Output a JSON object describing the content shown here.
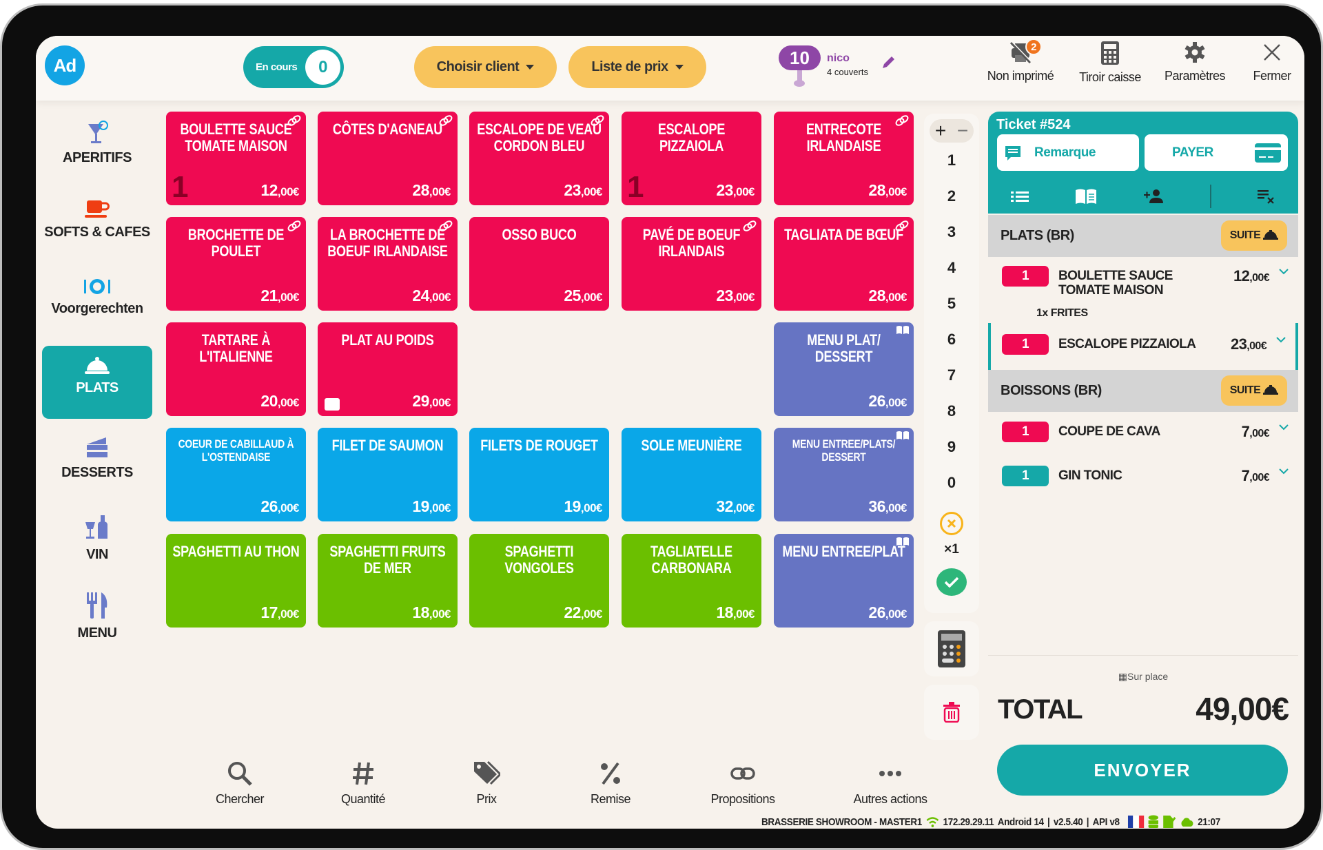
{
  "header": {
    "avatar": "Ad",
    "en_cours_label": "En cours",
    "en_cours_count": "0",
    "choose_client": "Choisir client",
    "price_list": "Liste de prix",
    "table_number": "10",
    "waiter": "nico",
    "covers": "4 couverts",
    "actions": [
      {
        "label": "Non imprimé",
        "icon": "printer-off-icon",
        "badge": "2"
      },
      {
        "label": "Tiroir caisse",
        "icon": "calculator-icon"
      },
      {
        "label": "Paramètres",
        "icon": "gear-icon"
      },
      {
        "label": "Fermer",
        "icon": "close-icon"
      }
    ]
  },
  "categories": [
    {
      "label": "APERITIFS",
      "icon": "cocktail-icon",
      "active": false
    },
    {
      "label": "SOFTS & CAFES",
      "icon": "coffee-cup-icon",
      "active": false
    },
    {
      "label": "Voorgerechten",
      "icon": "plate-icon",
      "active": false
    },
    {
      "label": "PLATS",
      "icon": "cloche-icon",
      "active": true
    },
    {
      "label": "DESSERTS",
      "icon": "cake-icon",
      "active": false
    },
    {
      "label": "VIN",
      "icon": "wine-icon",
      "active": false
    },
    {
      "label": "MENU",
      "icon": "cutlery-icon",
      "active": false
    }
  ],
  "colors": {
    "red": "#ef0a52",
    "blue": "#0aa7e8",
    "green": "#6bbf00",
    "purple": "#6674c3",
    "teal": "#15a8a8",
    "yellow": "#f8c45c"
  },
  "products": [
    {
      "name": "BOULETTE SAUCE TOMATE MAISON",
      "price": "12",
      "cents": ",00€",
      "color": "red",
      "icon": "link-icon",
      "qty": "1"
    },
    {
      "name": "CÔTES D'AGNEAU",
      "price": "28",
      "cents": ",00€",
      "color": "red",
      "icon": "link-icon"
    },
    {
      "name": "ESCALOPE DE VEAU CORDON BLEU",
      "price": "23",
      "cents": ",00€",
      "color": "red",
      "icon": "link-icon"
    },
    {
      "name": "ESCALOPE PIZZAIOLA",
      "price": "23",
      "cents": ",00€",
      "color": "red",
      "qty": "1"
    },
    {
      "name": "ENTRECOTE IRLANDAISE",
      "price": "28",
      "cents": ",00€",
      "color": "red",
      "icon": "link-icon"
    },
    {
      "name": "BROCHETTE DE POULET",
      "price": "21",
      "cents": ",00€",
      "color": "red",
      "icon": "link-icon"
    },
    {
      "name": "LA BROCHETTE DE BOEUF IRLANDAISE",
      "price": "24",
      "cents": ",00€",
      "color": "red",
      "icon": "link-icon"
    },
    {
      "name": "OSSO BUCO",
      "price": "25",
      "cents": ",00€",
      "color": "red"
    },
    {
      "name": "PAVÉ DE BOEUF IRLANDAIS",
      "price": "23",
      "cents": ",00€",
      "color": "red",
      "icon": "link-icon"
    },
    {
      "name": "TAGLIATA DE BŒUF",
      "price": "28",
      "cents": ",00€",
      "color": "red",
      "icon": "link-icon"
    },
    {
      "name": "TARTARE À L'ITALIENNE",
      "price": "20",
      "cents": ",00€",
      "color": "red"
    },
    {
      "name": "PLAT AU POIDS",
      "price": "29",
      "cents": ",00€",
      "color": "red",
      "weighed": true
    },
    null,
    null,
    {
      "name": "MENU PLAT/ DESSERT",
      "price": "26",
      "cents": ",00€",
      "color": "purple",
      "icon": "book-icon"
    },
    {
      "name": "COEUR DE CABILLAUD À L'OSTENDAISE",
      "price": "26",
      "cents": ",00€",
      "color": "blue",
      "small": true
    },
    {
      "name": "FILET DE SAUMON",
      "price": "19",
      "cents": ",00€",
      "color": "blue"
    },
    {
      "name": "FILETS DE ROUGET",
      "price": "19",
      "cents": ",00€",
      "color": "blue"
    },
    {
      "name": "SOLE MEUNIÈRE",
      "price": "32",
      "cents": ",00€",
      "color": "blue"
    },
    {
      "name": "MENU ENTREE/PLATS/ DESSERT",
      "price": "36",
      "cents": ",00€",
      "color": "purple",
      "icon": "book-icon",
      "small": true
    },
    {
      "name": "SPAGHETTI AU THON",
      "price": "17",
      "cents": ",00€",
      "color": "green"
    },
    {
      "name": "SPAGHETTI FRUITS DE MER",
      "price": "18",
      "cents": ",00€",
      "color": "green"
    },
    {
      "name": "SPAGHETTI VONGOLES",
      "price": "22",
      "cents": ",00€",
      "color": "green"
    },
    {
      "name": "TAGLIATELLE CARBONARA",
      "price": "18",
      "cents": ",00€",
      "color": "green"
    },
    {
      "name": "MENU ENTREE/PLAT",
      "price": "26",
      "cents": ",00€",
      "color": "purple",
      "icon": "book-icon"
    }
  ],
  "numpad": {
    "plus": "+",
    "minus": "−",
    "digits": [
      "1",
      "2",
      "3",
      "4",
      "5",
      "6",
      "7",
      "8",
      "9",
      "0"
    ],
    "multiplier": "×1"
  },
  "ticket": {
    "title": "Ticket #524",
    "remark": "Remarque",
    "pay": "PAYER",
    "groups": [
      {
        "name": "PLATS (BR)",
        "suite": "SUITE",
        "items": [
          {
            "qty": "1",
            "name": "BOULETTE SAUCE TOMATE MAISON",
            "price": "12",
            "cents": ",00€",
            "color": "red",
            "option": "1x FRITES"
          },
          {
            "qty": "1",
            "name": "ESCALOPE PIZZAIOLA",
            "price": "23",
            "cents": ",00€",
            "color": "red",
            "selected": true
          }
        ]
      },
      {
        "name": "BOISSONS (BR)",
        "suite": "SUITE",
        "items": [
          {
            "qty": "1",
            "name": "COUPE DE CAVA",
            "price": "7",
            "cents": ",00€",
            "color": "red"
          },
          {
            "qty": "1",
            "name": "GIN TONIC",
            "price": "7",
            "cents": ",00€",
            "color": "teal"
          }
        ]
      }
    ],
    "service_mode": "Sur place",
    "total_label": "TOTAL",
    "total": "49,00€",
    "send": "ENVOYER"
  },
  "toolbar": [
    {
      "label": "Chercher",
      "icon": "search-icon"
    },
    {
      "label": "Quantité",
      "icon": "hash-icon"
    },
    {
      "label": "Prix",
      "icon": "tags-icon"
    },
    {
      "label": "Remise",
      "icon": "percent-icon"
    },
    {
      "label": "Propositions",
      "icon": "link-icon"
    },
    {
      "label": "Autres actions",
      "icon": "more-icon"
    }
  ],
  "status": {
    "store": "BRASSERIE SHOWROOM - MASTER1",
    "ip": "172.29.29.11",
    "os": "Android 14",
    "version": "v2.5.40",
    "api": "API v8",
    "time": "21:07"
  }
}
